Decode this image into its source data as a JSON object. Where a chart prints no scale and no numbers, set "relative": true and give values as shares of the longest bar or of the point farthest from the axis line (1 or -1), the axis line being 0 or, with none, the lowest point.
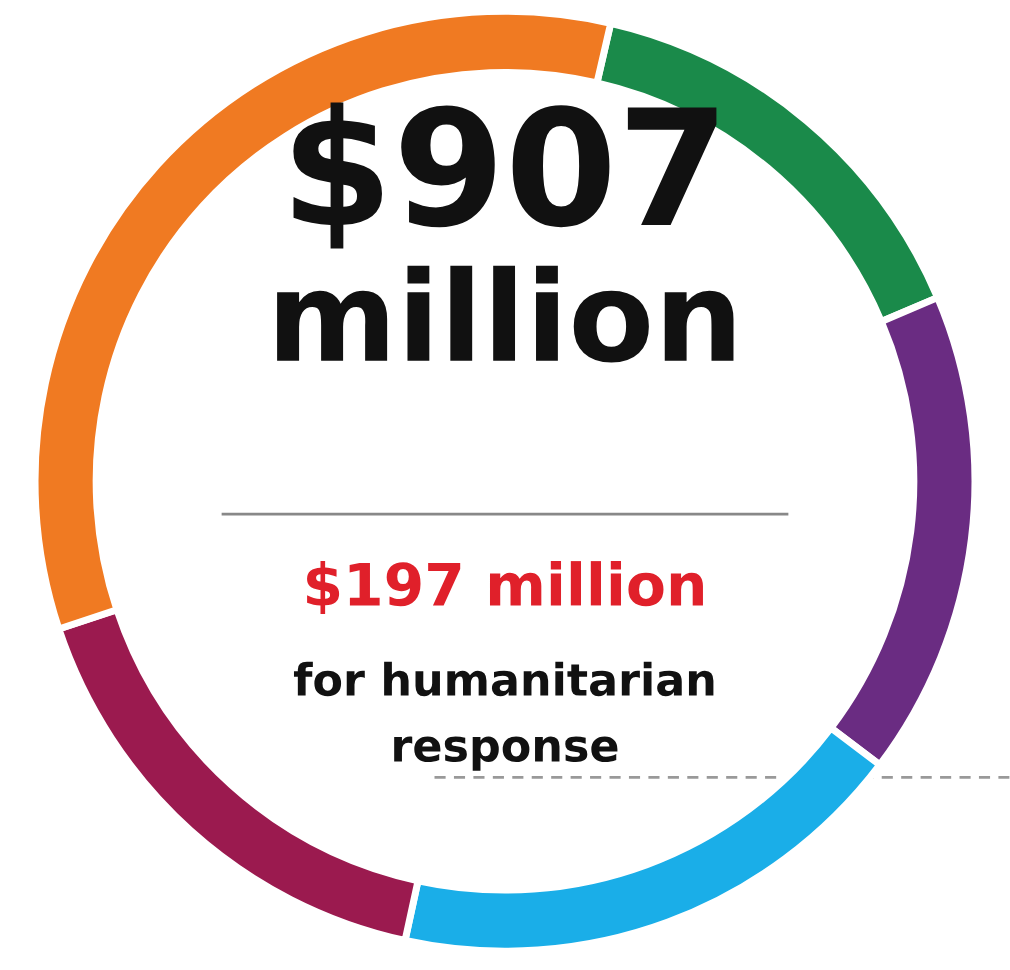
{
  "chart_data": {
    "type": "donut",
    "relative": true,
    "categories": [
      null,
      null,
      null,
      null,
      null
    ],
    "values": [
      15.0,
      16.7,
      18.1,
      16.5,
      33.7
    ],
    "colors": [
      "#1a8a4a",
      "#6a2c82",
      "#1aaee8",
      "#9b1a4f",
      "#f07a22"
    ],
    "annotations": [
      "$907",
      "million",
      "$197 million",
      "for humanitarian",
      "response"
    ]
  }
}
